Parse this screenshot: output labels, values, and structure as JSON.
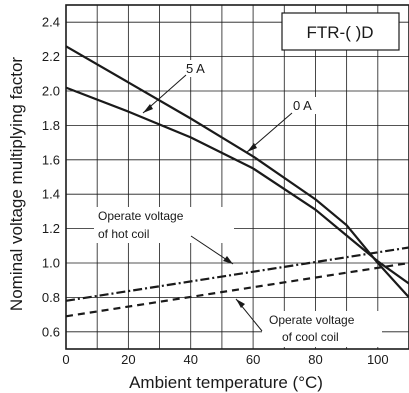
{
  "chart_data": {
    "type": "line",
    "title": "",
    "tag_label": "FTR-( )D",
    "xlabel": "Ambient temperature (°C)",
    "ylabel": "Nominal voltage multiplying factor",
    "xlim": [
      0,
      110
    ],
    "ylim": [
      0.5,
      2.5
    ],
    "x_ticks": [
      0,
      20,
      40,
      60,
      80,
      100
    ],
    "y_ticks": [
      0.6,
      0.8,
      1.0,
      1.2,
      1.4,
      1.6,
      1.8,
      2.0,
      2.2,
      2.4
    ],
    "x_tick_labels": [
      "0",
      "20",
      "40",
      "60",
      "80",
      "100"
    ],
    "y_tick_labels": [
      "0.6",
      "0.8",
      "1.0",
      "1.2",
      "1.4",
      "1.6",
      "1.8",
      "2.0",
      "2.2",
      "2.4"
    ],
    "grid": true,
    "series": [
      {
        "name": "5 A",
        "style": "solid",
        "x": [
          0,
          20,
          40,
          60,
          80,
          90,
          100,
          110
        ],
        "y": [
          2.26,
          2.05,
          1.84,
          1.62,
          1.37,
          1.22,
          1.0,
          0.8
        ]
      },
      {
        "name": "0 A",
        "style": "solid",
        "x": [
          0,
          20,
          40,
          60,
          80,
          90,
          100,
          110
        ],
        "y": [
          2.02,
          1.88,
          1.73,
          1.55,
          1.31,
          1.16,
          1.01,
          0.88
        ]
      },
      {
        "name": "Operate voltage of hot coil",
        "style": "dashdot",
        "x": [
          0,
          110
        ],
        "y": [
          0.78,
          1.09
        ]
      },
      {
        "name": "Operate voltage of cool coil",
        "style": "dashed",
        "x": [
          0,
          110
        ],
        "y": [
          0.69,
          1.0
        ]
      }
    ],
    "annotations": {
      "label_5a": "5 A",
      "label_0a": "0 A",
      "hot_coil_line1": "Operate voltage",
      "hot_coil_line2": "of hot coil",
      "cool_coil_line1": "Operate voltage",
      "cool_coil_line2": "of cool coil"
    },
    "colors": {
      "line": "#1a1a1a",
      "grid": "#1a1a1a",
      "background": "#ffffff"
    }
  }
}
